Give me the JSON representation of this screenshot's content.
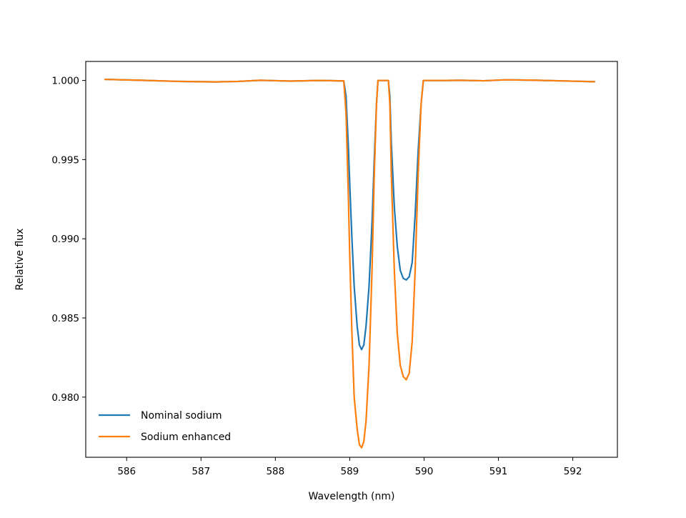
{
  "chart_data": {
    "type": "line",
    "xlabel": "Wavelength (nm)",
    "ylabel": "Relative flux",
    "xlim": [
      585.45,
      592.6
    ],
    "ylim": [
      0.9762,
      1.0012
    ],
    "xticks": [
      586,
      587,
      588,
      589,
      590,
      591,
      592
    ],
    "xtick_labels": [
      "586",
      "587",
      "588",
      "589",
      "590",
      "591",
      "592"
    ],
    "yticks": [
      0.98,
      0.985,
      0.99,
      0.995,
      1.0
    ],
    "ytick_labels": [
      "0.980",
      "0.985",
      "0.990",
      "0.995",
      "1.000"
    ],
    "grid": false,
    "legend_position": "lower-left",
    "series": [
      {
        "name": "Nominal sodium",
        "color": "#1f77b4",
        "points": [
          [
            585.7,
            1.00007
          ],
          [
            586.2,
            1.00001
          ],
          [
            586.7,
            0.99994
          ],
          [
            587.2,
            0.99991
          ],
          [
            587.5,
            0.99994
          ],
          [
            587.8,
            1.00001
          ],
          [
            588.2,
            0.99996
          ],
          [
            588.6,
            1.0
          ],
          [
            588.92,
            0.99997
          ],
          [
            588.95,
            0.999
          ],
          [
            588.98,
            0.996
          ],
          [
            589.0,
            0.9935
          ],
          [
            589.03,
            0.99
          ],
          [
            589.06,
            0.987
          ],
          [
            589.1,
            0.9845
          ],
          [
            589.13,
            0.9833
          ],
          [
            589.16,
            0.983
          ],
          [
            589.19,
            0.9833
          ],
          [
            589.22,
            0.9845
          ],
          [
            589.26,
            0.987
          ],
          [
            589.3,
            0.991
          ],
          [
            589.33,
            0.995
          ],
          [
            589.36,
            0.9985
          ],
          [
            589.38,
            1.0
          ],
          [
            589.52,
            1.0
          ],
          [
            589.54,
            0.999
          ],
          [
            589.56,
            0.996
          ],
          [
            589.6,
            0.992
          ],
          [
            589.64,
            0.9895
          ],
          [
            589.68,
            0.988
          ],
          [
            589.72,
            0.9875
          ],
          [
            589.76,
            0.9874
          ],
          [
            589.8,
            0.9876
          ],
          [
            589.84,
            0.9885
          ],
          [
            589.88,
            0.9915
          ],
          [
            589.92,
            0.9955
          ],
          [
            589.96,
            0.9985
          ],
          [
            589.99,
            1.0
          ],
          [
            590.3,
            1.0
          ],
          [
            590.5,
            1.00001
          ],
          [
            590.8,
            0.99998
          ],
          [
            591.1,
            1.00004
          ],
          [
            591.4,
            1.00002
          ],
          [
            591.8,
            0.99998
          ],
          [
            592.3,
            0.99992
          ]
        ]
      },
      {
        "name": "Sodium enhanced",
        "color": "#ff7f0e",
        "points": [
          [
            585.7,
            1.00007
          ],
          [
            586.2,
            1.00001
          ],
          [
            586.7,
            0.99994
          ],
          [
            587.2,
            0.99991
          ],
          [
            587.5,
            0.99994
          ],
          [
            587.8,
            1.00001
          ],
          [
            588.2,
            0.99996
          ],
          [
            588.6,
            1.0
          ],
          [
            588.92,
            0.99997
          ],
          [
            588.95,
            0.998
          ],
          [
            588.98,
            0.993
          ],
          [
            589.0,
            0.989
          ],
          [
            589.03,
            0.984
          ],
          [
            589.06,
            0.98
          ],
          [
            589.1,
            0.978
          ],
          [
            589.13,
            0.977
          ],
          [
            589.16,
            0.9768
          ],
          [
            589.19,
            0.9772
          ],
          [
            589.22,
            0.9785
          ],
          [
            589.26,
            0.982
          ],
          [
            589.3,
            0.988
          ],
          [
            589.33,
            0.994
          ],
          [
            589.36,
            0.9985
          ],
          [
            589.38,
            1.0
          ],
          [
            589.52,
            1.0
          ],
          [
            589.54,
            0.9985
          ],
          [
            589.56,
            0.994
          ],
          [
            589.6,
            0.988
          ],
          [
            589.64,
            0.984
          ],
          [
            589.68,
            0.982
          ],
          [
            589.72,
            0.9813
          ],
          [
            589.76,
            0.9811
          ],
          [
            589.8,
            0.9815
          ],
          [
            589.84,
            0.9835
          ],
          [
            589.88,
            0.988
          ],
          [
            589.92,
            0.994
          ],
          [
            589.96,
            0.9985
          ],
          [
            589.99,
            1.0
          ],
          [
            590.3,
            1.0
          ],
          [
            590.5,
            1.00001
          ],
          [
            590.8,
            0.99998
          ],
          [
            591.1,
            1.00004
          ],
          [
            591.4,
            1.00002
          ],
          [
            591.8,
            0.99998
          ],
          [
            592.3,
            0.99992
          ]
        ]
      }
    ]
  }
}
